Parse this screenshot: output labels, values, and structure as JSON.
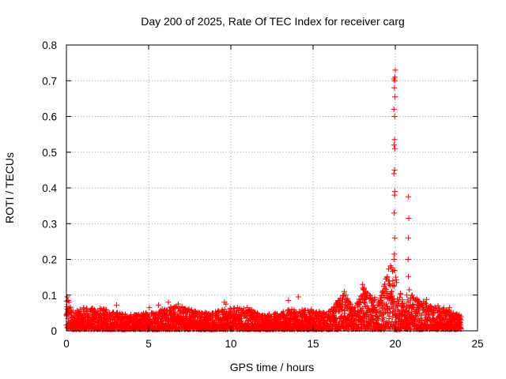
{
  "chart_data": {
    "type": "scatter",
    "title": "Day 200 of 2025, Rate Of TEC Index for receiver carg",
    "xlabel": "GPS time / hours",
    "ylabel": "ROTI / TECUs",
    "xlim": [
      0,
      25
    ],
    "ylim": [
      0,
      0.8
    ],
    "xticks": [
      0,
      5,
      10,
      15,
      20,
      25
    ],
    "yticks": [
      0,
      0.1,
      0.2,
      0.3,
      0.4,
      0.5,
      0.6,
      0.7,
      0.8
    ],
    "grid": true,
    "marker": "plus",
    "color": "#ff0000",
    "series": [
      {
        "name": "ROTI",
        "baseline_envelope": {
          "description": "dense band of samples every ~30 s from 0 to 24 h",
          "x": [
            0,
            0.5,
            1,
            2,
            3,
            4,
            5,
            6,
            7,
            8,
            9,
            10,
            11,
            12,
            13,
            14,
            15,
            16,
            16.8,
            17.5,
            18,
            19,
            19.8,
            20.5,
            21,
            22,
            23,
            24
          ],
          "y_max": [
            0.08,
            0.05,
            0.06,
            0.06,
            0.05,
            0.04,
            0.05,
            0.06,
            0.07,
            0.05,
            0.05,
            0.06,
            0.06,
            0.04,
            0.05,
            0.06,
            0.05,
            0.05,
            0.1,
            0.06,
            0.12,
            0.08,
            0.2,
            0.07,
            0.1,
            0.07,
            0.06,
            0.04
          ]
        },
        "points": [
          {
            "x": 0.05,
            "y": 0.095
          },
          {
            "x": 0.1,
            "y": 0.085
          },
          {
            "x": 0.15,
            "y": 0.08
          },
          {
            "x": 1.05,
            "y": 0.065
          },
          {
            "x": 1.6,
            "y": 0.06
          },
          {
            "x": 2.3,
            "y": 0.06
          },
          {
            "x": 3.05,
            "y": 0.072
          },
          {
            "x": 5.05,
            "y": 0.065
          },
          {
            "x": 5.6,
            "y": 0.072
          },
          {
            "x": 6.2,
            "y": 0.08
          },
          {
            "x": 6.8,
            "y": 0.075
          },
          {
            "x": 7.4,
            "y": 0.058
          },
          {
            "x": 9.6,
            "y": 0.08
          },
          {
            "x": 9.7,
            "y": 0.075
          },
          {
            "x": 10.4,
            "y": 0.065
          },
          {
            "x": 11.0,
            "y": 0.065
          },
          {
            "x": 13.5,
            "y": 0.085
          },
          {
            "x": 14.1,
            "y": 0.095
          },
          {
            "x": 14.9,
            "y": 0.06
          },
          {
            "x": 16.0,
            "y": 0.055
          },
          {
            "x": 16.9,
            "y": 0.11
          },
          {
            "x": 17.0,
            "y": 0.1
          },
          {
            "x": 17.1,
            "y": 0.09
          },
          {
            "x": 18.0,
            "y": 0.13
          },
          {
            "x": 18.1,
            "y": 0.12
          },
          {
            "x": 18.2,
            "y": 0.11
          },
          {
            "x": 19.85,
            "y": 0.14
          },
          {
            "x": 19.9,
            "y": 0.17
          },
          {
            "x": 19.92,
            "y": 0.2
          },
          {
            "x": 19.94,
            "y": 0.215
          },
          {
            "x": 19.96,
            "y": 0.26
          },
          {
            "x": 19.93,
            "y": 0.33
          },
          {
            "x": 19.95,
            "y": 0.38
          },
          {
            "x": 19.97,
            "y": 0.39
          },
          {
            "x": 19.92,
            "y": 0.44
          },
          {
            "x": 19.95,
            "y": 0.45
          },
          {
            "x": 19.97,
            "y": 0.51
          },
          {
            "x": 19.93,
            "y": 0.52
          },
          {
            "x": 19.95,
            "y": 0.535
          },
          {
            "x": 19.96,
            "y": 0.6
          },
          {
            "x": 19.92,
            "y": 0.62
          },
          {
            "x": 19.98,
            "y": 0.655
          },
          {
            "x": 19.94,
            "y": 0.68
          },
          {
            "x": 19.96,
            "y": 0.7
          },
          {
            "x": 19.92,
            "y": 0.705
          },
          {
            "x": 19.98,
            "y": 0.71
          },
          {
            "x": 20.0,
            "y": 0.73
          },
          {
            "x": 20.8,
            "y": 0.375
          },
          {
            "x": 20.82,
            "y": 0.315
          },
          {
            "x": 20.8,
            "y": 0.26
          },
          {
            "x": 20.78,
            "y": 0.2
          },
          {
            "x": 20.8,
            "y": 0.152
          },
          {
            "x": 20.85,
            "y": 0.115
          },
          {
            "x": 20.7,
            "y": 0.1
          },
          {
            "x": 21.3,
            "y": 0.09
          },
          {
            "x": 21.9,
            "y": 0.088
          },
          {
            "x": 22.6,
            "y": 0.07
          },
          {
            "x": 23.3,
            "y": 0.065
          }
        ]
      }
    ]
  }
}
